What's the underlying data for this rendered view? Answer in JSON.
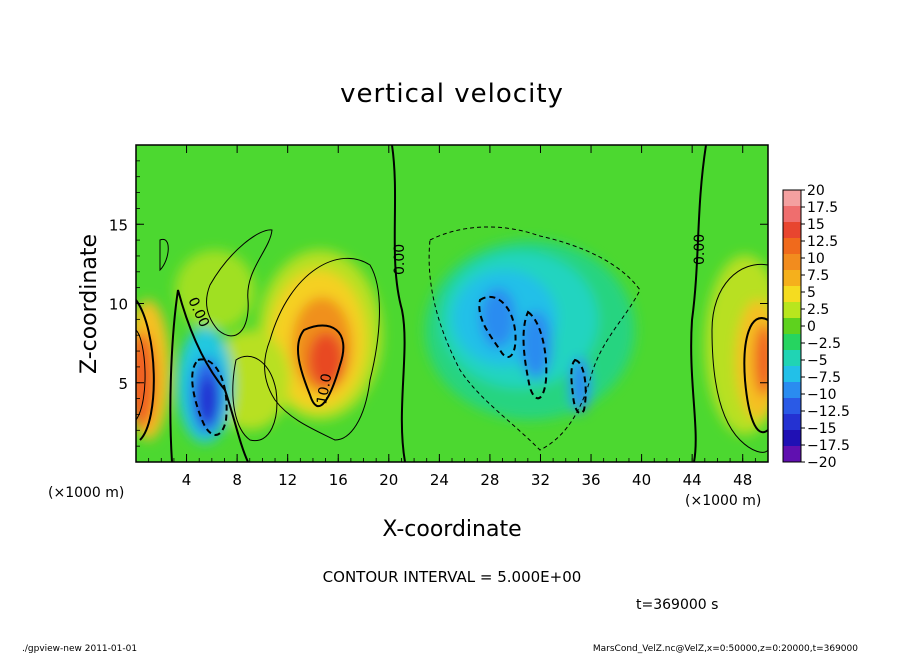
{
  "chart_data": {
    "type": "heatmap",
    "title": "vertical velocity",
    "xlabel": "X-coordinate",
    "ylabel": "Z-coordinate",
    "x_unit_left": "(×1000 m)",
    "x_unit_right": "(×1000 m)",
    "xlim": [
      0,
      50
    ],
    "ylim": [
      0,
      20
    ],
    "x_ticks": [
      4,
      8,
      12,
      16,
      20,
      24,
      28,
      32,
      36,
      40,
      44,
      48
    ],
    "y_ticks": [
      5,
      10,
      15
    ],
    "colorbar": {
      "levels": [
        "20",
        "17.5",
        "15",
        "12.5",
        "10",
        "7.5",
        "5",
        "2.5",
        "0",
        "-2.5",
        "-5",
        "-7.5",
        "-10",
        "-12.5",
        "-15",
        "-17.5",
        "-20"
      ],
      "colors": [
        "#f4a0a0",
        "#ef6e6e",
        "#e8452f",
        "#f06a1c",
        "#f28c1e",
        "#f5b01c",
        "#f5dc20",
        "#b8e61e",
        "#5ed21e",
        "#26d460",
        "#20d4b4",
        "#22c0e8",
        "#2a8cf0",
        "#2a5ae6",
        "#2432d2",
        "#2010b4",
        "#6010b0"
      ]
    },
    "contour_labels": [
      "0.00",
      "0.00",
      "0.00",
      "10.0"
    ],
    "features": [
      {
        "x": 1,
        "z": 5,
        "w": 10
      },
      {
        "x": 5.8,
        "z": 4,
        "w": -14
      },
      {
        "x": 14.5,
        "z": 7,
        "w": 14
      },
      {
        "x": 29,
        "z": 9.5,
        "w": -11
      },
      {
        "x": 32,
        "z": 8,
        "w": -10
      },
      {
        "x": 35,
        "z": 5,
        "w": -10
      },
      {
        "x": 49.5,
        "z": 6,
        "w": 9
      }
    ]
  },
  "annotations": {
    "contour_interval": "CONTOUR INTERVAL = 5.000E+00",
    "time": "t=369000 s",
    "footer_left": "./gpview-new  2011-01-01",
    "footer_right": "MarsCond_VelZ.nc@VelZ,x=0:50000,z=0:20000,t=369000"
  }
}
